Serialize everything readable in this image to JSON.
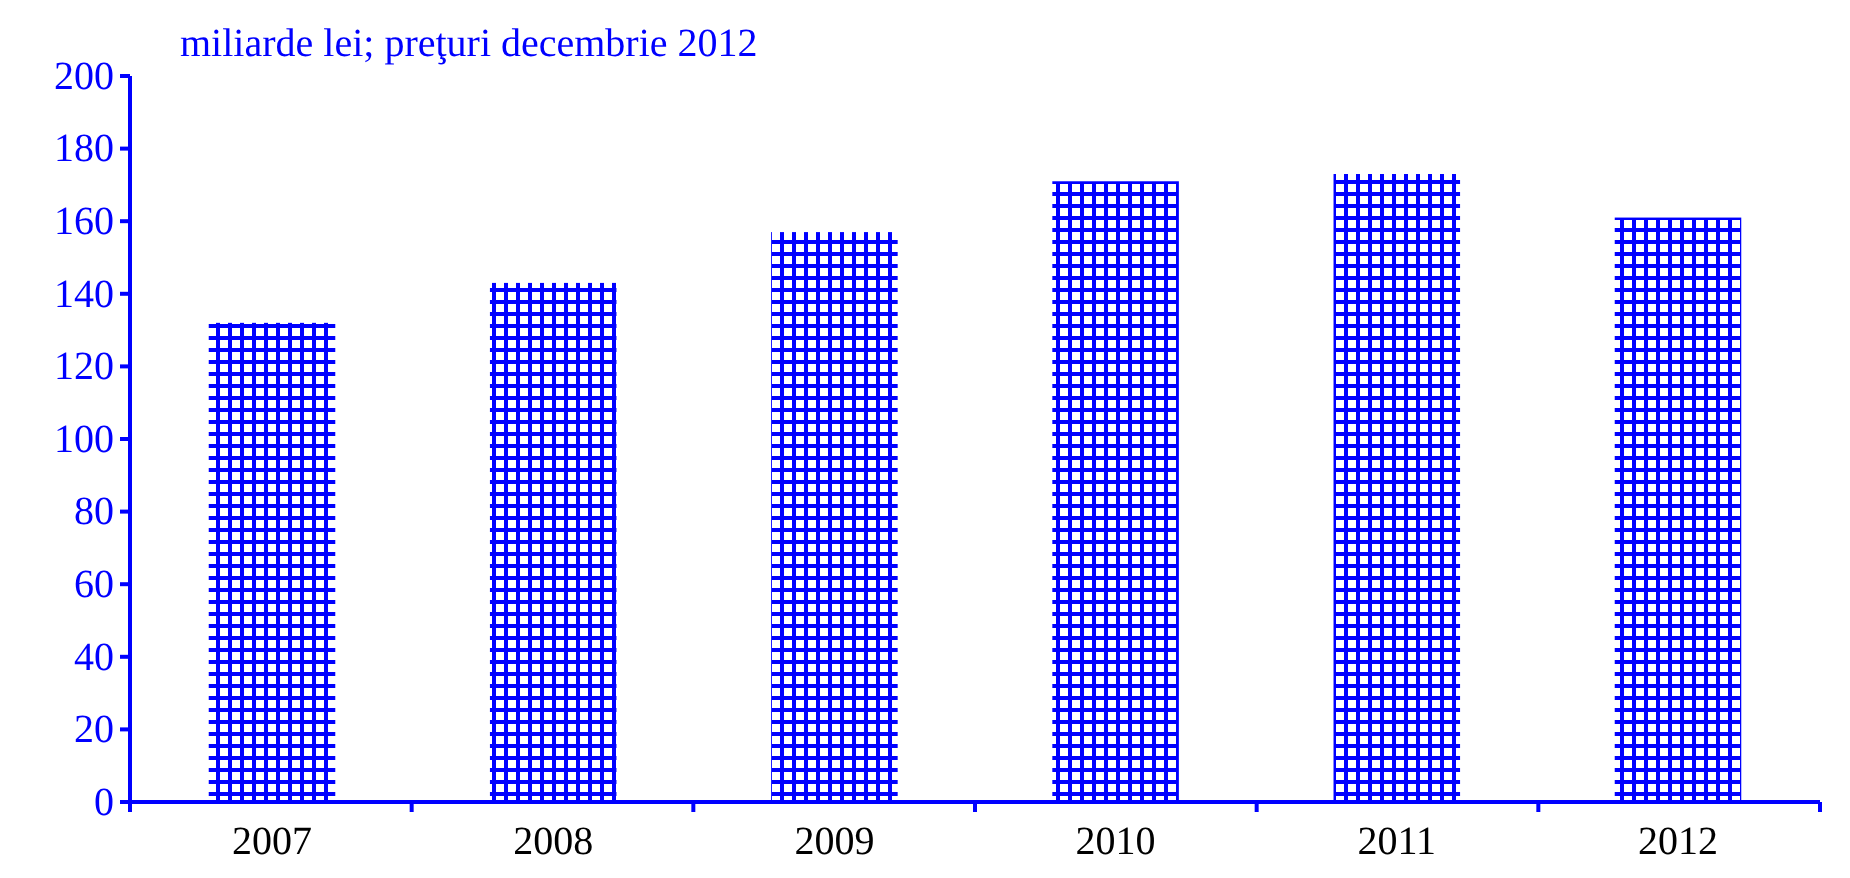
{
  "chart_data": {
    "type": "bar",
    "ylabel": "miliarde lei; preţuri decembrie 2012",
    "categories": [
      "2007",
      "2008",
      "2009",
      "2010",
      "2011",
      "2012"
    ],
    "values": [
      132,
      143,
      157,
      171,
      173,
      161
    ],
    "color": "#0000ff",
    "ylim": [
      0,
      200
    ],
    "yticks": [
      0,
      20,
      40,
      60,
      80,
      100,
      120,
      140,
      160,
      180,
      200
    ],
    "grid": false
  }
}
